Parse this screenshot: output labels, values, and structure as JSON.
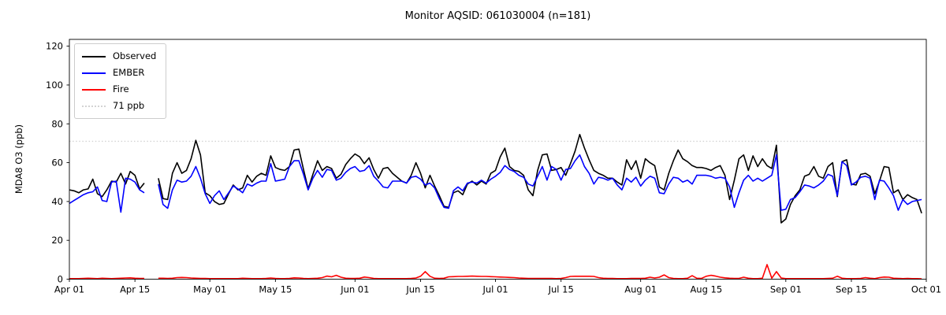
{
  "chart_data": {
    "type": "line",
    "title": "Monitor AQSID: 061030004 (n=181)",
    "ylabel": "MDA8 O3 (ppb)",
    "ylim": [
      0,
      123.5
    ],
    "y_ticks": [
      0,
      20,
      40,
      60,
      80,
      100,
      120
    ],
    "x_tick_labels": [
      "Apr 01",
      "Apr 15",
      "May 01",
      "May 15",
      "Jun 01",
      "Jun 15",
      "Jul 01",
      "Jul 15",
      "Aug 01",
      "Aug 15",
      "Sep 01",
      "Sep 15",
      "Oct 01"
    ],
    "x_tick_days": [
      0,
      14,
      30,
      44,
      61,
      75,
      91,
      105,
      122,
      136,
      153,
      167,
      183
    ],
    "x_range_days": [
      0,
      183
    ],
    "x_unit": "day (daily values, Apr 01 through Sep 30; Apr 18-19 missing)",
    "grid": false,
    "legend_position": "upper left",
    "threshold": {
      "label": "71 ppb",
      "value": 71,
      "color": "#d3d3d3"
    },
    "series": [
      {
        "name": "Observed",
        "color": "#000000",
        "values": [
          46,
          45.5,
          44.5,
          46,
          46.5,
          51.5,
          44,
          42.5,
          46,
          50.5,
          50,
          54.5,
          49,
          55.5,
          53.5,
          46.5,
          49.5,
          null,
          null,
          52,
          41.5,
          41,
          54.5,
          60,
          54.5,
          56,
          62,
          71.5,
          64,
          44.5,
          43,
          40,
          38.5,
          39,
          44,
          48.5,
          46,
          47,
          53.5,
          50,
          53,
          54.5,
          53.5,
          63.5,
          57.5,
          56.5,
          56,
          58,
          66.5,
          67,
          56.5,
          46.5,
          54,
          61,
          56,
          58,
          57,
          52,
          54,
          59,
          62,
          64.5,
          63,
          59.5,
          62.5,
          56.5,
          52,
          57,
          57.5,
          54.5,
          52.5,
          50.5,
          49.5,
          53.5,
          60,
          54.5,
          47,
          53.5,
          48,
          43,
          37.5,
          37,
          44.5,
          45.5,
          43.5,
          49,
          50.5,
          48.5,
          50.5,
          49,
          54.5,
          56,
          63,
          67.5,
          58,
          56,
          55.5,
          53.5,
          46,
          43,
          56,
          64,
          64.5,
          56,
          56.5,
          57.5,
          53.5,
          59.5,
          66,
          74.5,
          67.5,
          61.5,
          56,
          54.5,
          53.5,
          52,
          52,
          50,
          48.5,
          61.5,
          56.5,
          61,
          52,
          62,
          60,
          58.5,
          47.5,
          46,
          54.5,
          61,
          66.5,
          62,
          60.5,
          58.5,
          57.5,
          57.5,
          57,
          56,
          57.5,
          58.5,
          53.5,
          41,
          51,
          62,
          64,
          56,
          63.5,
          58,
          62,
          58.5,
          57,
          69,
          29,
          31,
          38.5,
          43,
          46,
          53,
          54,
          58,
          53,
          52,
          58,
          60,
          42.5,
          60.5,
          61.5,
          49,
          48.5,
          54,
          54.5,
          53,
          44,
          50.5,
          58,
          57.5,
          44.5,
          46,
          41,
          43.5,
          42,
          41,
          34
        ]
      },
      {
        "name": "EMBER",
        "color": "#0000ff",
        "values": [
          39,
          40.5,
          42,
          43.5,
          44.5,
          45,
          47.5,
          40.5,
          40,
          50,
          50.5,
          34.5,
          52,
          51.5,
          50,
          46,
          44.5,
          null,
          null,
          49,
          38.5,
          36.5,
          46,
          51,
          50,
          50.5,
          53,
          58,
          52,
          44,
          39,
          43,
          45.5,
          41,
          44.5,
          48,
          46.5,
          44.5,
          49,
          48,
          49.5,
          50.5,
          50.5,
          59.5,
          50.5,
          51,
          51.5,
          58,
          61,
          61,
          54,
          46,
          52,
          56,
          52.5,
          56.5,
          56,
          51,
          52,
          55,
          57,
          58,
          55.5,
          56,
          58.5,
          53,
          50.5,
          47.5,
          47,
          50.5,
          50.5,
          50.5,
          49.5,
          52.5,
          53,
          51.5,
          48.5,
          49.5,
          47,
          41.5,
          37,
          36.5,
          45.5,
          47.5,
          45.5,
          49.5,
          50,
          49.5,
          51,
          49.5,
          51.5,
          53,
          55,
          58.5,
          56.5,
          55.5,
          53.5,
          52.5,
          49,
          48,
          53,
          58,
          51,
          58,
          56.5,
          51,
          56.5,
          57,
          61,
          64,
          58,
          54.5,
          49,
          52.5,
          52,
          51,
          52,
          48.5,
          46,
          52,
          50,
          52.5,
          48,
          51,
          53,
          52,
          44.5,
          44,
          49,
          52.5,
          52,
          50,
          51,
          49,
          53.5,
          53.5,
          53.5,
          53,
          52,
          52.5,
          52,
          47.5,
          37,
          44.5,
          51,
          53.5,
          50.5,
          52,
          50.5,
          52,
          53.5,
          64,
          35.5,
          36,
          41,
          42,
          45,
          48.5,
          48,
          47,
          48.5,
          50.5,
          54,
          53,
          43,
          60.5,
          58.5,
          48.5,
          50,
          52.5,
          53,
          52,
          41,
          51,
          50.5,
          47,
          43,
          35.5,
          41,
          38.5,
          40,
          40.5,
          41
        ]
      },
      {
        "name": "Fire",
        "color": "#ff0000",
        "values": [
          0.3,
          0.3,
          0.3,
          0.4,
          0.5,
          0.4,
          0.3,
          0.5,
          0.4,
          0.3,
          0.4,
          0.5,
          0.6,
          0.7,
          0.5,
          0.4,
          0.4,
          null,
          null,
          0.5,
          0.5,
          0.4,
          0.5,
          0.8,
          0.9,
          0.8,
          0.6,
          0.5,
          0.4,
          0.4,
          0.3,
          0.3,
          0.3,
          0.3,
          0.3,
          0.3,
          0.3,
          0.5,
          0.4,
          0.3,
          0.3,
          0.3,
          0.4,
          0.6,
          0.4,
          0.3,
          0.3,
          0.4,
          0.7,
          0.6,
          0.4,
          0.3,
          0.4,
          0.5,
          0.8,
          1.6,
          1.2,
          2,
          1,
          0.5,
          0.4,
          0.4,
          0.5,
          1.1,
          0.8,
          0.4,
          0.3,
          0.3,
          0.3,
          0.3,
          0.3,
          0.3,
          0.3,
          0.4,
          0.6,
          1.5,
          3.9,
          1.5,
          0.5,
          0.4,
          0.5,
          1.2,
          1.3,
          1.4,
          1.4,
          1.5,
          1.6,
          1.5,
          1.4,
          1.4,
          1.3,
          1.2,
          1.1,
          1,
          0.9,
          0.8,
          0.6,
          0.5,
          0.4,
          0.4,
          0.4,
          0.4,
          0.4,
          0.4,
          0.3,
          0.4,
          0.8,
          1.4,
          1.5,
          1.5,
          1.5,
          1.5,
          1.4,
          0.8,
          0.5,
          0.4,
          0.4,
          0.3,
          0.3,
          0.3,
          0.4,
          0.4,
          0.4,
          0.5,
          1,
          0.6,
          1,
          2.2,
          0.8,
          0.4,
          0.3,
          0.3,
          0.5,
          1.8,
          0.5,
          0.4,
          1.5,
          2,
          1.6,
          1,
          0.7,
          0.5,
          0.4,
          0.4,
          1,
          0.5,
          0.3,
          0.3,
          0.5,
          7.5,
          0.5,
          3.9,
          0.6,
          0.3,
          0.3,
          0.3,
          0.3,
          0.3,
          0.3,
          0.3,
          0.3,
          0.3,
          0.4,
          0.5,
          1.5,
          0.5,
          0.3,
          0.3,
          0.3,
          0.4,
          0.8,
          0.5,
          0.3,
          0.8,
          1.1,
          1,
          0.5,
          0.4,
          0.3,
          0.4,
          0.3,
          0.3,
          0.2
        ]
      }
    ]
  }
}
